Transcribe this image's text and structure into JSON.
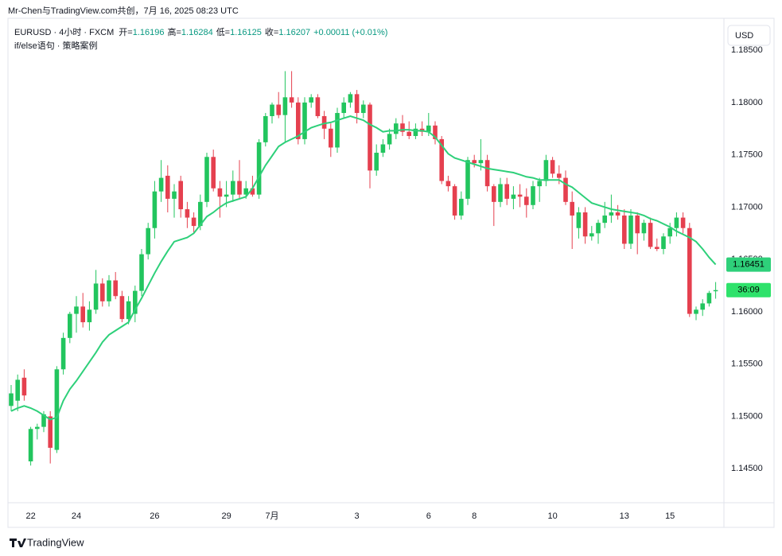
{
  "chart_data": {
    "type": "candlestick",
    "title": "Mr-Chen与TradingView.com共创，7月 16, 2025 08:23 UTC",
    "symbol": "EURUSD · 4小时 · FXCM",
    "legend_labels": {
      "open": "开=",
      "high": "高=",
      "low": "低=",
      "close": "收="
    },
    "change": "+0.00011 (+0.01%)",
    "currency": "USD",
    "countdown": "36:09",
    "brand": "TradingView",
    "up_color": "#22c55e",
    "down_color": "#e5404f",
    "grid": false,
    "categories": [
      null,
      null,
      null,
      "22",
      null,
      null,
      null,
      null,
      null,
      null,
      "24",
      null,
      null,
      null,
      null,
      null,
      null,
      null,
      null,
      null,
      null,
      null,
      "26",
      null,
      null,
      null,
      null,
      null,
      null,
      null,
      null,
      null,
      null,
      "29",
      null,
      null,
      null,
      null,
      null,
      null,
      "7月",
      null,
      null,
      null,
      null,
      null,
      null,
      null,
      null,
      null,
      null,
      null,
      null,
      "3",
      null,
      null,
      null,
      null,
      null,
      null,
      null,
      null,
      null,
      null,
      "6",
      null,
      null,
      null,
      null,
      null,
      null,
      "8",
      null,
      null,
      null,
      null,
      null,
      null,
      null,
      null,
      null,
      null,
      null,
      "10",
      null,
      null,
      null,
      null,
      null,
      null,
      null,
      null,
      null,
      null,
      "13",
      null,
      null,
      null,
      null,
      null,
      null,
      "15",
      null,
      null,
      null,
      null,
      null,
      null,
      null
    ],
    "open": [
      1.151,
      1.1515,
      1.1537,
      1.1457,
      1.1488,
      1.149,
      1.15,
      1.1468,
      1.1545,
      1.1575,
      1.1598,
      1.1605,
      1.159,
      1.1602,
      1.1627,
      1.161,
      1.163,
      1.1615,
      1.1593,
      1.1598,
      1.162,
      1.1655,
      1.168,
      1.1715,
      1.173,
      1.1708,
      1.1725,
      1.1698,
      1.169,
      1.1682,
      1.1705,
      1.1748,
      1.1718,
      1.171,
      1.1712,
      1.1725,
      1.1712,
      1.1718,
      1.1712,
      1.1762,
      1.1787,
      1.1798,
      1.1788,
      1.1805,
      1.18,
      1.1765,
      1.18,
      1.1805,
      1.1787,
      1.1775,
      1.1757,
      1.179,
      1.18,
      1.1808,
      1.179,
      1.1798,
      1.1735,
      1.1752,
      1.176,
      1.177,
      1.178,
      1.1772,
      1.1768,
      1.1775,
      1.1772,
      1.1778,
      1.1765,
      1.1725,
      1.172,
      1.1692,
      1.1708,
      1.1745,
      1.1742,
      1.1745,
      1.172,
      1.1705,
      1.1722,
      1.1708,
      1.1712,
      1.171,
      1.1702,
      1.172,
      1.1725,
      1.1745,
      1.1732,
      1.1728,
      1.1705,
      1.168,
      1.1695,
      1.1672,
      1.1675,
      1.1685,
      1.1692,
      1.1695,
      1.1692,
      1.1665,
      1.1692,
      1.1675,
      1.1685,
      1.1662,
      1.166,
      1.1672,
      1.168,
      1.169,
      1.168,
      1.1598,
      1.1602,
      1.1608,
      1.16196
    ],
    "high": [
      1.153,
      1.154,
      1.1545,
      1.149,
      1.1493,
      1.1505,
      1.1505,
      1.1548,
      1.158,
      1.16,
      1.1615,
      1.1618,
      1.161,
      1.164,
      1.1632,
      1.1635,
      1.1638,
      1.162,
      1.1615,
      1.1625,
      1.166,
      1.1685,
      1.1725,
      1.1745,
      1.174,
      1.1722,
      1.173,
      1.1705,
      1.1695,
      1.1712,
      1.1752,
      1.1755,
      1.1725,
      1.1725,
      1.1735,
      1.1745,
      1.1725,
      1.173,
      1.1765,
      1.179,
      1.18,
      1.181,
      1.183,
      1.183,
      1.1805,
      1.1805,
      1.1808,
      1.1808,
      1.1792,
      1.178,
      1.1795,
      1.1805,
      1.181,
      1.1812,
      1.1802,
      1.18,
      1.176,
      1.1765,
      1.1775,
      1.1785,
      1.1788,
      1.1782,
      1.178,
      1.1782,
      1.179,
      1.1782,
      1.1768,
      1.173,
      1.1722,
      1.1715,
      1.1748,
      1.175,
      1.1765,
      1.175,
      1.1722,
      1.1728,
      1.1728,
      1.172,
      1.1722,
      1.1718,
      1.1725,
      1.1728,
      1.175,
      1.1748,
      1.174,
      1.1735,
      1.1715,
      1.17,
      1.17,
      1.1682,
      1.1688,
      1.1705,
      1.1712,
      1.1702,
      1.1698,
      1.1698,
      1.1695,
      1.1688,
      1.169,
      1.167,
      1.1675,
      1.1685,
      1.1695,
      1.1695,
      1.1685,
      1.1605,
      1.1612,
      1.162,
      1.16284
    ],
    "low": [
      1.1505,
      1.1505,
      1.1515,
      1.1453,
      1.1478,
      1.1485,
      1.1455,
      1.1465,
      1.154,
      1.157,
      1.158,
      1.1585,
      1.1582,
      1.1598,
      1.1605,
      1.1605,
      1.1612,
      1.159,
      1.1588,
      1.159,
      1.1615,
      1.165,
      1.167,
      1.1705,
      1.1695,
      1.169,
      1.169,
      1.168,
      1.1675,
      1.1678,
      1.17,
      1.1715,
      1.169,
      1.17,
      1.1705,
      1.1708,
      1.1708,
      1.171,
      1.1708,
      1.1758,
      1.178,
      1.1785,
      1.1762,
      1.1795,
      1.176,
      1.176,
      1.1795,
      1.1785,
      1.1765,
      1.1748,
      1.1752,
      1.1785,
      1.1795,
      1.178,
      1.1785,
      1.1718,
      1.173,
      1.1748,
      1.1755,
      1.1765,
      1.1768,
      1.1765,
      1.1765,
      1.1768,
      1.1768,
      1.176,
      1.1722,
      1.1715,
      1.1688,
      1.1688,
      1.1702,
      1.1738,
      1.1735,
      1.1715,
      1.1682,
      1.17,
      1.1702,
      1.1698,
      1.17,
      1.169,
      1.1698,
      1.1705,
      1.172,
      1.1728,
      1.1722,
      1.1702,
      1.166,
      1.167,
      1.1665,
      1.1668,
      1.1665,
      1.168,
      1.1685,
      1.1688,
      1.166,
      1.166,
      1.1655,
      1.1668,
      1.166,
      1.1658,
      1.1655,
      1.1665,
      1.1672,
      1.1675,
      1.1595,
      1.1592,
      1.1596,
      1.1605,
      1.16125
    ],
    "close": [
      1.1522,
      1.1535,
      1.152,
      1.1488,
      1.149,
      1.1502,
      1.147,
      1.1545,
      1.1575,
      1.1598,
      1.1605,
      1.159,
      1.1602,
      1.1627,
      1.161,
      1.163,
      1.1615,
      1.1593,
      1.161,
      1.162,
      1.1655,
      1.168,
      1.1715,
      1.1728,
      1.1708,
      1.1715,
      1.1698,
      1.169,
      1.1682,
      1.1705,
      1.1748,
      1.1718,
      1.171,
      1.1712,
      1.1725,
      1.1712,
      1.1718,
      1.1712,
      1.1762,
      1.1787,
      1.1798,
      1.1788,
      1.1805,
      1.18,
      1.1765,
      1.18,
      1.1805,
      1.1787,
      1.1775,
      1.1757,
      1.179,
      1.18,
      1.1808,
      1.179,
      1.1798,
      1.1735,
      1.1752,
      1.176,
      1.177,
      1.178,
      1.1772,
      1.1768,
      1.1775,
      1.1772,
      1.1778,
      1.1765,
      1.1725,
      1.172,
      1.1692,
      1.1708,
      1.1745,
      1.1742,
      1.1745,
      1.172,
      1.1705,
      1.1722,
      1.1708,
      1.1712,
      1.171,
      1.1702,
      1.172,
      1.1725,
      1.1745,
      1.1732,
      1.1728,
      1.1705,
      1.1692,
      1.1695,
      1.1672,
      1.1675,
      1.1685,
      1.1692,
      1.1695,
      1.1692,
      1.1665,
      1.1692,
      1.1675,
      1.1685,
      1.1662,
      1.166,
      1.1672,
      1.168,
      1.169,
      1.168,
      1.1598,
      1.1602,
      1.1608,
      1.1618,
      1.16207
    ],
    "indicator": {
      "name": "if/else语句 · 策略案例",
      "color": "#2ed07a",
      "values": [
        1.1505,
        1.1508,
        1.151,
        1.1508,
        1.1505,
        1.1501,
        1.1497,
        1.1499,
        1.1515,
        1.1526,
        1.1534,
        1.1543,
        1.1552,
        1.1561,
        1.1571,
        1.1578,
        1.1582,
        1.1586,
        1.159,
        1.1602,
        1.1613,
        1.1625,
        1.1637,
        1.1648,
        1.1658,
        1.1667,
        1.1669,
        1.1671,
        1.1675,
        1.1683,
        1.1691,
        1.1695,
        1.17,
        1.1704,
        1.1706,
        1.1708,
        1.171,
        1.1718,
        1.1729,
        1.174,
        1.1749,
        1.1758,
        1.1762,
        1.1765,
        1.1768,
        1.1772,
        1.1776,
        1.1778,
        1.178,
        1.1781,
        1.1783,
        1.1785,
        1.1787,
        1.1785,
        1.1783,
        1.1779,
        1.1776,
        1.1772,
        1.1773,
        1.1773,
        1.1774,
        1.1774,
        1.1773,
        1.1773,
        1.1772,
        1.1767,
        1.1759,
        1.1751,
        1.1747,
        1.1745,
        1.1743,
        1.1741,
        1.1739,
        1.1737,
        1.1736,
        1.1735,
        1.1734,
        1.1733,
        1.1731,
        1.1729,
        1.1728,
        1.1726,
        1.1726,
        1.1726,
        1.1726,
        1.1722,
        1.1719,
        1.1714,
        1.1709,
        1.1704,
        1.1702,
        1.17,
        1.1698,
        1.1697,
        1.1696,
        1.1695,
        1.1694,
        1.1692,
        1.1689,
        1.1687,
        1.1684,
        1.1681,
        1.1677,
        1.1674,
        1.1671,
        1.1667,
        1.166,
        1.1652,
        1.16451
      ]
    },
    "ylim": [
      1.14175,
      1.18805
    ],
    "yticks": [
      {
        "value": 1.145,
        "label": "1.14500"
      },
      {
        "value": 1.15,
        "label": "1.15000"
      },
      {
        "value": 1.155,
        "label": "1.15500"
      },
      {
        "value": 1.16,
        "label": "1.16000"
      },
      {
        "value": 1.165,
        "label": "1.16500"
      },
      {
        "value": 1.17,
        "label": "1.17000"
      },
      {
        "value": 1.175,
        "label": "1.17500"
      },
      {
        "value": 1.18,
        "label": "1.18000"
      },
      {
        "value": 1.185,
        "label": "1.18500"
      }
    ]
  }
}
